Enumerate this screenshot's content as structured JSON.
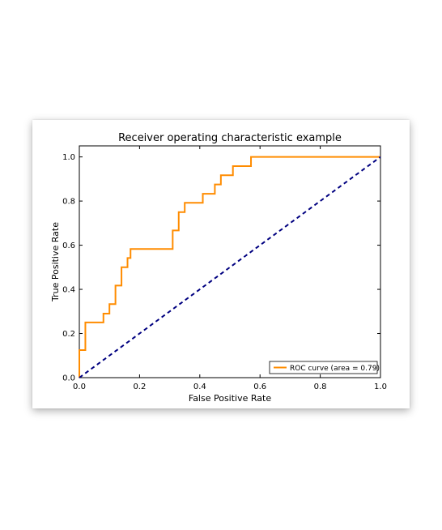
{
  "chart_data": {
    "type": "line",
    "title": "Receiver operating characteristic example",
    "xlabel": "False Positive Rate",
    "ylabel": "True Positive Rate",
    "xlim": [
      0.0,
      1.0
    ],
    "ylim": [
      0.0,
      1.05
    ],
    "xticks": [
      "0.0",
      "0.2",
      "0.4",
      "0.6",
      "0.8",
      "1.0"
    ],
    "yticks": [
      "0.0",
      "0.2",
      "0.4",
      "0.6",
      "0.8",
      "1.0"
    ],
    "grid": false,
    "legend_position": "lower-right",
    "series": [
      {
        "name": "ROC curve (area = 0.79)",
        "color": "#ff8c00",
        "style": "solid",
        "x": [
          0.0,
          0.0,
          0.02,
          0.02,
          0.08,
          0.08,
          0.1,
          0.1,
          0.12,
          0.12,
          0.14,
          0.14,
          0.16,
          0.16,
          0.17,
          0.17,
          0.31,
          0.31,
          0.33,
          0.33,
          0.35,
          0.35,
          0.41,
          0.41,
          0.45,
          0.45,
          0.47,
          0.47,
          0.51,
          0.51,
          0.57,
          0.57,
          1.0
        ],
        "y": [
          0.0,
          0.125,
          0.125,
          0.25,
          0.25,
          0.29,
          0.29,
          0.333,
          0.333,
          0.417,
          0.417,
          0.5,
          0.5,
          0.542,
          0.542,
          0.583,
          0.583,
          0.667,
          0.667,
          0.75,
          0.75,
          0.792,
          0.792,
          0.833,
          0.833,
          0.875,
          0.875,
          0.917,
          0.917,
          0.958,
          0.958,
          1.0,
          1.0
        ]
      },
      {
        "color": "#000080",
        "style": "dashed",
        "x": [
          0.0,
          1.0
        ],
        "y": [
          0.0,
          1.0
        ]
      }
    ]
  }
}
